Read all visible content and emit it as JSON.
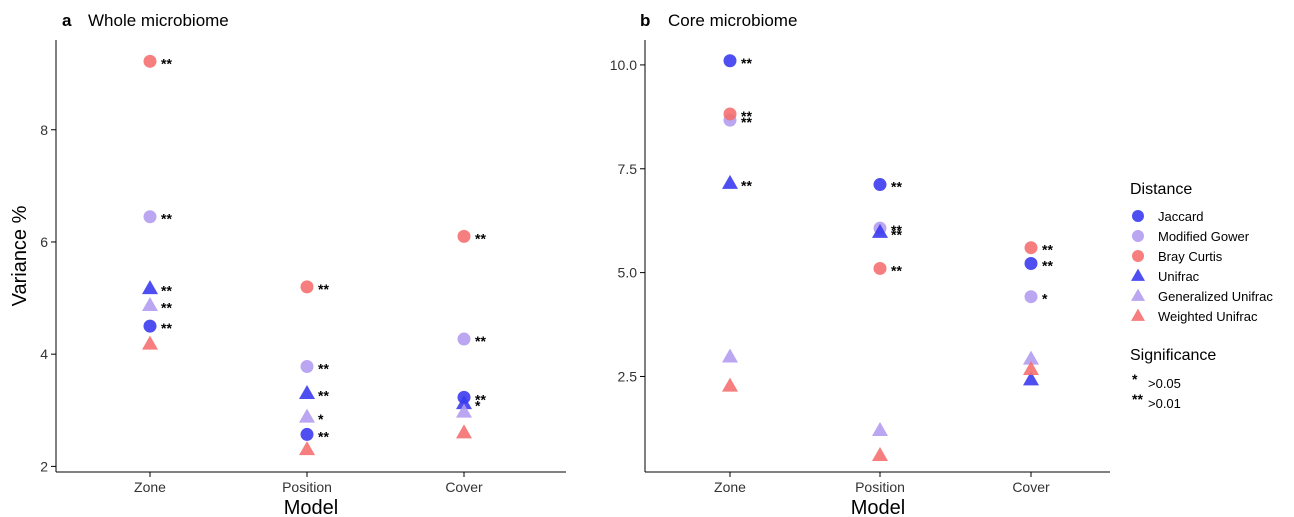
{
  "colors": {
    "jaccard": "#3b3bf0",
    "modified_gower": "#b49cf0",
    "bray_curtis": "#f57070"
  },
  "legend": {
    "distance_title": "Distance",
    "significance_title": "Significance",
    "items": [
      {
        "label": "Jaccard",
        "shape": "circle",
        "color": "#3b3bf0"
      },
      {
        "label": "Modified Gower",
        "shape": "circle",
        "color": "#b49cf0"
      },
      {
        "label": "Bray Curtis",
        "shape": "circle",
        "color": "#f57070"
      },
      {
        "label": "Unifrac",
        "shape": "triangle",
        "color": "#3b3bf0"
      },
      {
        "label": "Generalized Unifrac",
        "shape": "triangle",
        "color": "#b49cf0"
      },
      {
        "label": "Weighted Unifrac",
        "shape": "triangle",
        "color": "#f57070"
      }
    ],
    "significance": [
      {
        "key": "*",
        "label": ">0.05"
      },
      {
        "key": "**",
        "label": ">0.01"
      }
    ]
  },
  "chart_data": [
    {
      "type": "scatter",
      "panel": "a",
      "title": "Whole microbiome",
      "xlabel": "Model",
      "ylabel": "Variance %",
      "categories": [
        "Zone",
        "Position",
        "Cover"
      ],
      "ylim": [
        1.9,
        9.6
      ],
      "yticks": [
        2,
        4,
        6,
        8
      ],
      "ytick_labels": [
        "2",
        "4",
        "6",
        "8"
      ],
      "series": [
        {
          "name": "Jaccard",
          "values": [
            4.5,
            2.57,
            3.23
          ],
          "sig": [
            "**",
            "**",
            "**"
          ]
        },
        {
          "name": "Modified Gower",
          "values": [
            6.45,
            3.78,
            4.27
          ],
          "sig": [
            "**",
            "**",
            "**"
          ]
        },
        {
          "name": "Bray Curtis",
          "values": [
            9.22,
            5.2,
            6.1
          ],
          "sig": [
            "**",
            "**",
            "**"
          ]
        },
        {
          "name": "Unifrac",
          "values": [
            5.17,
            3.3,
            3.12
          ],
          "sig": [
            "**",
            "**",
            "*"
          ]
        },
        {
          "name": "Generalized Unifrac",
          "values": [
            4.87,
            2.88,
            2.97
          ],
          "sig": [
            "**",
            "*",
            ""
          ]
        },
        {
          "name": "Weighted Unifrac",
          "values": [
            4.18,
            2.3,
            2.6
          ],
          "sig": [
            "",
            "",
            ""
          ]
        }
      ]
    },
    {
      "type": "scatter",
      "panel": "b",
      "title": "Core microbiome",
      "xlabel": "Model",
      "ylabel": "",
      "categories": [
        "Zone",
        "Position",
        "Cover"
      ],
      "ylim": [
        0.2,
        10.6
      ],
      "yticks": [
        2.5,
        5.0,
        7.5,
        10.0
      ],
      "ytick_labels": [
        "2.5",
        "5.0",
        "7.5",
        "10.0"
      ],
      "series": [
        {
          "name": "Jaccard",
          "values": [
            10.1,
            7.12,
            5.22
          ],
          "sig": [
            "**",
            "**",
            "**"
          ]
        },
        {
          "name": "Modified Gower",
          "values": [
            8.67,
            6.07,
            4.42
          ],
          "sig": [
            "**",
            "**",
            "*"
          ]
        },
        {
          "name": "Bray Curtis",
          "values": [
            8.82,
            5.1,
            5.6
          ],
          "sig": [
            "**",
            "**",
            "**"
          ]
        },
        {
          "name": "Unifrac",
          "values": [
            7.15,
            5.97,
            2.42
          ],
          "sig": [
            "**",
            "**",
            ""
          ]
        },
        {
          "name": "Generalized Unifrac",
          "values": [
            2.97,
            1.2,
            2.92
          ],
          "sig": [
            "",
            "",
            ""
          ]
        },
        {
          "name": "Weighted Unifrac",
          "values": [
            2.27,
            0.6,
            2.67
          ],
          "sig": [
            "",
            "",
            ""
          ]
        }
      ]
    }
  ]
}
